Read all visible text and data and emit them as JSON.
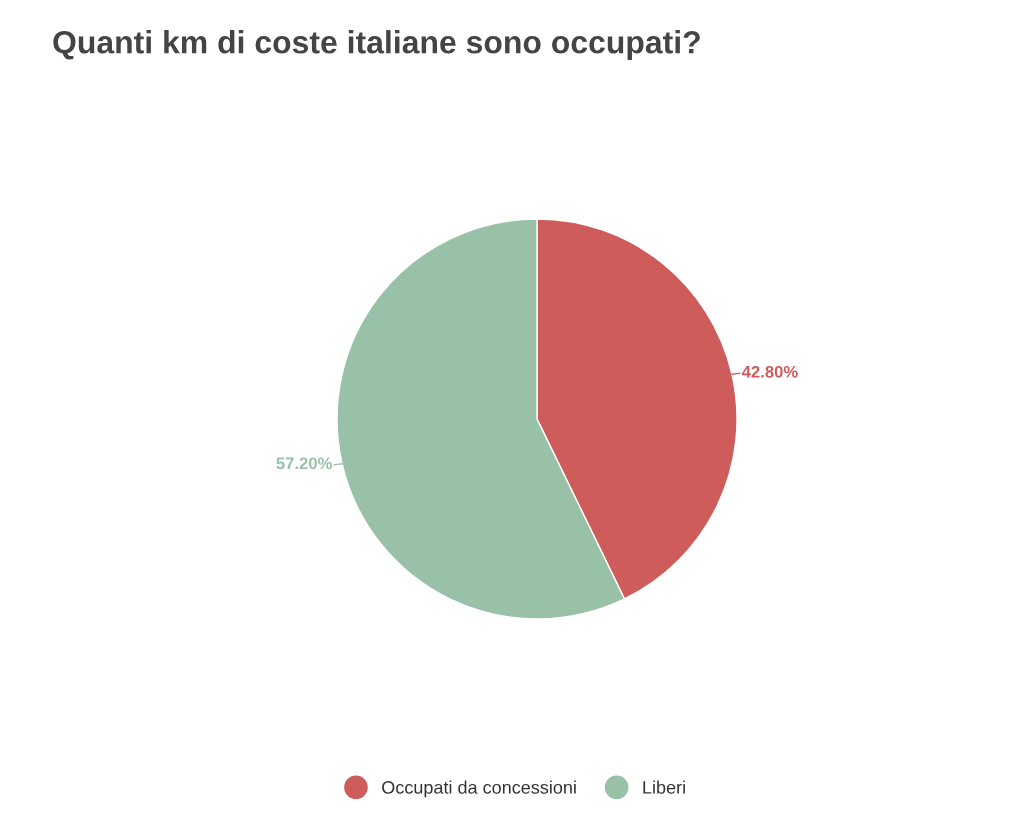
{
  "chart_data": {
    "type": "pie",
    "title": "Quanti km di coste italiane sono occupati?",
    "categories": [
      "Occupati da concessioni",
      "Liberi"
    ],
    "values": [
      42.8,
      57.2
    ],
    "colors": [
      "#cd5c5a",
      "#98c1a8"
    ],
    "value_labels": [
      "42.80%",
      "57.20%"
    ],
    "legend": "bottom"
  }
}
